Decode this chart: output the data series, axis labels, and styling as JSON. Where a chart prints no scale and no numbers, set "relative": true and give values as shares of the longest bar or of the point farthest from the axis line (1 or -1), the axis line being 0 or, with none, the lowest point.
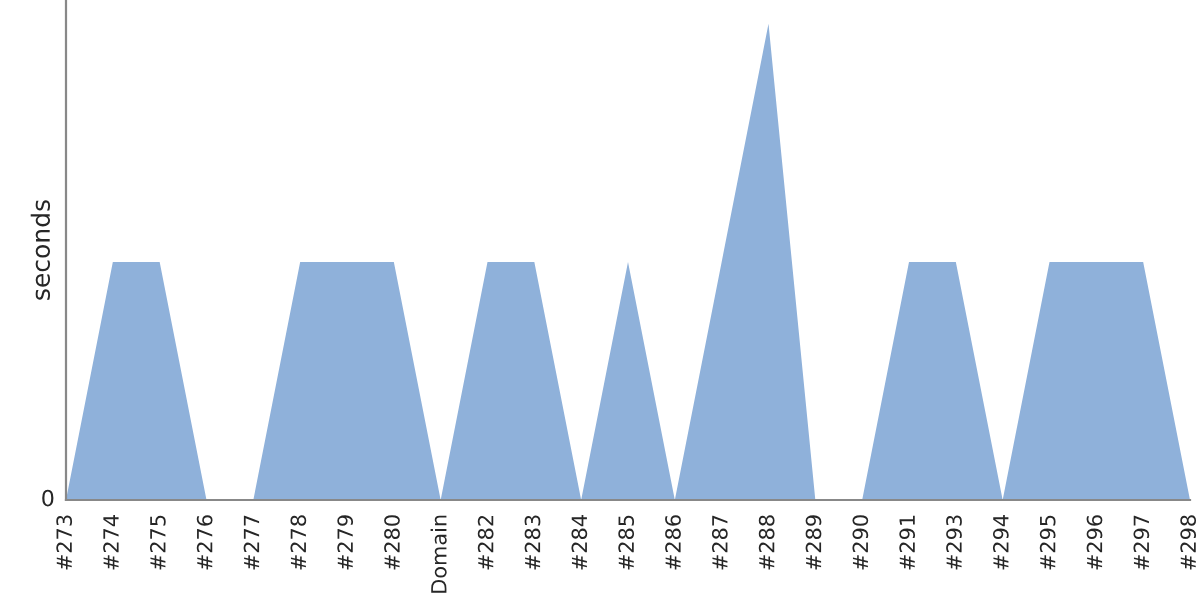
{
  "chart_data": {
    "type": "area",
    "ylabel": "seconds",
    "relative": true,
    "categories": [
      "#273",
      "#274",
      "#275",
      "#276",
      "#277",
      "#278",
      "#279",
      "#280",
      "Domain",
      "#282",
      "#283",
      "#284",
      "#285",
      "#286",
      "#287",
      "#288",
      "#289",
      "#290",
      "#291",
      "#293",
      "#294",
      "#295",
      "#296",
      "#297",
      "#298"
    ],
    "series": [
      {
        "color": "#8fb1da",
        "values": [
          0,
          0.5,
          0.5,
          0,
          0,
          0.5,
          0.5,
          0.5,
          0,
          0.5,
          0.5,
          0,
          0.5,
          0,
          0.5,
          1,
          0,
          0,
          0.5,
          0.5,
          0,
          0.5,
          0.5,
          0.5,
          0
        ]
      }
    ],
    "annotations": [
      "0"
    ],
    "grid": false,
    "legend": false
  }
}
